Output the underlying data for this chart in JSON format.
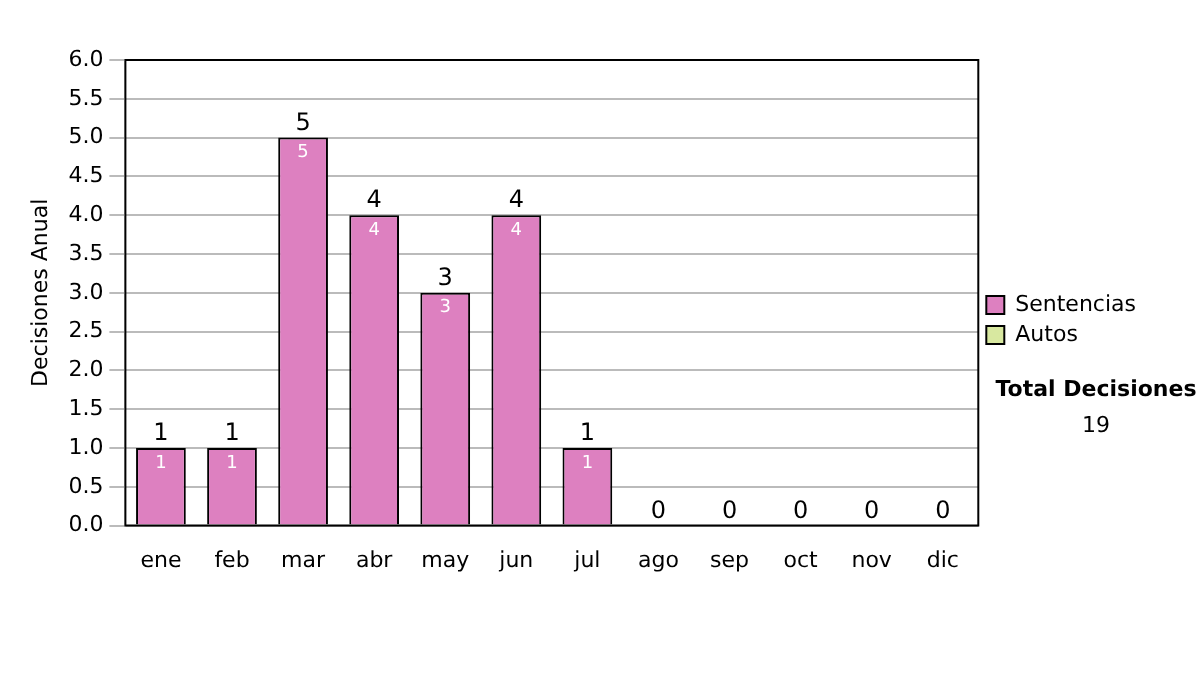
{
  "chart_data": {
    "type": "bar",
    "ylabel": "Decisiones Anual",
    "stacked": true,
    "categories": [
      "ene",
      "feb",
      "mar",
      "abr",
      "may",
      "jun",
      "jul",
      "ago",
      "sep",
      "oct",
      "nov",
      "dic"
    ],
    "series": [
      {
        "name": "Sentencias",
        "color": "#dd80c0",
        "values": [
          1,
          1,
          5,
          4,
          3,
          4,
          1,
          0,
          0,
          0,
          0,
          0
        ],
        "value_labels": [
          "1",
          "1",
          "5",
          "4",
          "3",
          "4",
          "1",
          null,
          null,
          null,
          null,
          null
        ]
      },
      {
        "name": "Autos",
        "color": "#d8e8a0",
        "values": [
          0,
          0,
          0,
          0,
          0,
          0,
          0,
          0,
          0,
          0,
          0,
          0
        ]
      }
    ],
    "totals": [
      "1",
      "1",
      "5",
      "4",
      "3",
      "4",
      "1",
      "0",
      "0",
      "0",
      "0",
      "0"
    ],
    "ylim": [
      0,
      6
    ],
    "yticks": [
      {
        "value": 0,
        "label": "0.0"
      },
      {
        "value": 0.5,
        "label": "0.5"
      },
      {
        "value": 1,
        "label": "1.0"
      },
      {
        "value": 1.5,
        "label": "1.5"
      },
      {
        "value": 2,
        "label": "2.0"
      },
      {
        "value": 2.5,
        "label": "2.5"
      },
      {
        "value": 3,
        "label": "3.0"
      },
      {
        "value": 3.5,
        "label": "3.5"
      },
      {
        "value": 4,
        "label": "4.0"
      },
      {
        "value": 4.5,
        "label": "4.5"
      },
      {
        "value": 5,
        "label": "5.0"
      },
      {
        "value": 5.5,
        "label": "5.5"
      },
      {
        "value": 6,
        "label": "6.0"
      }
    ],
    "grid": "y",
    "legend": "right",
    "annotations": [
      "Total Decisiones",
      "19"
    ]
  }
}
